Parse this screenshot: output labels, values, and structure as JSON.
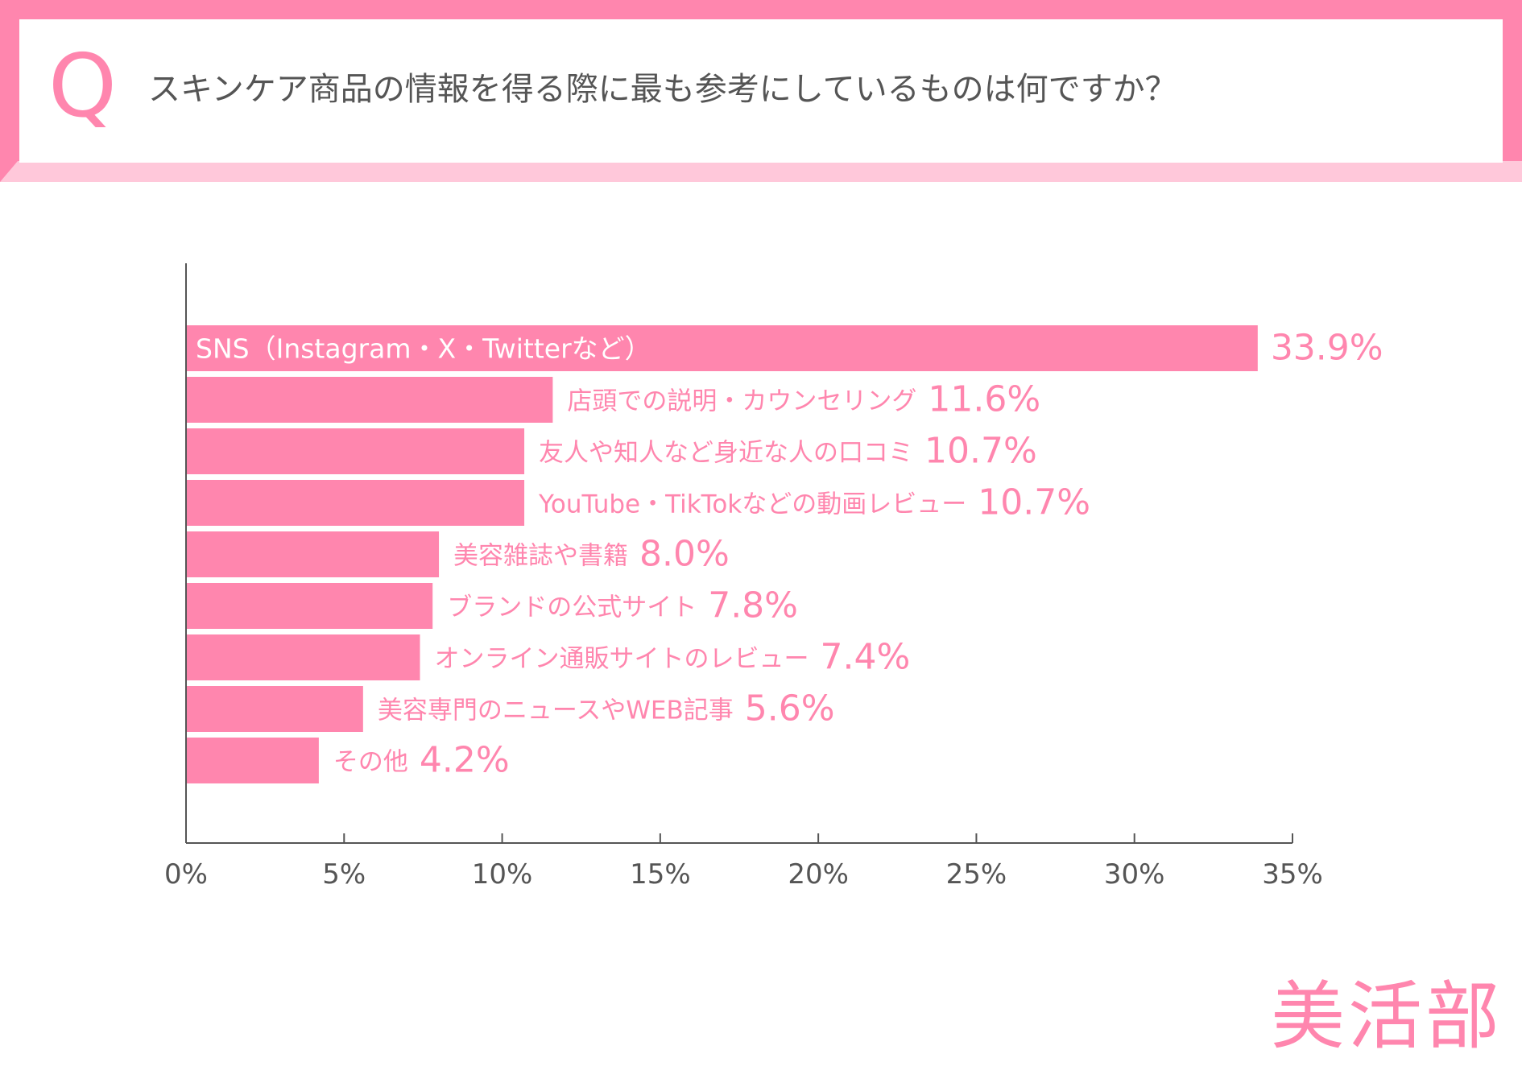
{
  "question": {
    "mark": "Q",
    "text": "スキンケア商品の情報を得る際に最も参考にしているものは何ですか？"
  },
  "brand": "美活部",
  "colors": {
    "accent": "#ff86ae",
    "accent_light": "#ffc8da",
    "axis": "#555555",
    "text_gray": "#555555"
  },
  "chart_data": {
    "type": "bar",
    "orientation": "horizontal",
    "categories": [
      "SNS（Instagram・X・Twitterなど）",
      "店頭での説明・カウンセリング",
      "友人や知人など身近な人の口コミ",
      "YouTube・TikTokなどの動画レビュー",
      "美容雑誌や書籍",
      "ブランドの公式サイト",
      "オンライン通販サイトのレビュー",
      "美容専門のニュースやWEB記事",
      "その他"
    ],
    "values": [
      33.9,
      11.6,
      10.7,
      10.7,
      8.0,
      7.8,
      7.4,
      5.6,
      4.2
    ],
    "value_labels": [
      "33.9%",
      "11.6%",
      "10.7%",
      "10.7%",
      "8.0%",
      "7.8%",
      "7.4%",
      "5.6%",
      "4.2%"
    ],
    "xlim": [
      0,
      35
    ],
    "xticks": [
      "0%",
      "5%",
      "10%",
      "15%",
      "20%",
      "25%",
      "30%",
      "35%"
    ],
    "grid": false,
    "legend": "none"
  }
}
